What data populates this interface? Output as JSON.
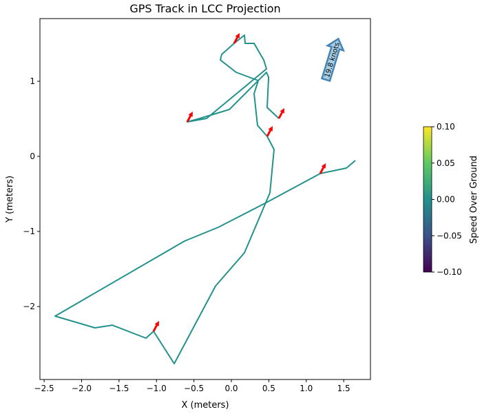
{
  "chart_data": {
    "type": "line",
    "title": "GPS Track in LCC Projection",
    "xlabel": "X (meters)",
    "ylabel": "Y (meters)",
    "xlim": [
      -2.556,
      1.857
    ],
    "ylim": [
      -2.972,
      1.835
    ],
    "xticks": [
      -2.5,
      -2.0,
      -1.5,
      -1.0,
      -0.5,
      0.0,
      0.5,
      1.0,
      1.5
    ],
    "xtick_labels": [
      "−2.5",
      "−2.0",
      "−1.5",
      "−1.0",
      "−0.5",
      "0.0",
      "0.5",
      "1.0",
      "1.5"
    ],
    "yticks": [
      1,
      0,
      -1,
      -2
    ],
    "ytick_labels": [
      "1",
      "0",
      "−1",
      "−2"
    ],
    "grid": false,
    "line_color": "#21918c",
    "track": {
      "x": [
        1.655,
        1.536,
        1.186,
        0.451,
        -0.175,
        -0.625,
        -2.354,
        -1.821,
        -1.591,
        -1.14,
        -1.039,
        -0.763,
        -0.211,
        0.175,
        0.515,
        0.57,
        0.478,
        0.349,
        0.303,
        0.359,
        0.064,
        -0.147,
        -0.129,
        0.037,
        0.175,
        0.184,
        0.303,
        0.432,
        0.469,
        -0.331,
        -0.589,
        -0.423,
        -0.028,
        0.469,
        0.497,
        0.478,
        0.634
      ],
      "y": [
        -0.055,
        -0.156,
        -0.229,
        -0.624,
        -0.945,
        -1.128,
        -2.128,
        -2.284,
        -2.248,
        -2.422,
        -2.33,
        -2.761,
        -1.725,
        -1.284,
        -0.486,
        0.092,
        0.266,
        0.413,
        0.835,
        1.009,
        1.119,
        1.284,
        1.358,
        1.505,
        1.615,
        1.505,
        1.505,
        1.284,
        1.165,
        0.505,
        0.459,
        0.505,
        0.624,
        1.119,
        1.055,
        0.651,
        0.505
      ]
    },
    "heading_arrows": {
      "color": "#ff0000",
      "x": [
        0.037,
        -0.589,
        0.634,
        0.478,
        1.186,
        -1.039
      ],
      "y": [
        1.505,
        0.459,
        0.505,
        0.266,
        -0.229,
        -2.33
      ],
      "heading_deg": 28
    },
    "annotation": {
      "text": "19.8 knots",
      "fill": "#a6cee3",
      "edge": "#4682b4"
    },
    "colorbar": {
      "label": "Speed Over Ground",
      "range": [
        -0.1,
        0.1
      ],
      "ticks": [
        0.1,
        0.05,
        0.0,
        -0.05,
        -0.1
      ],
      "tick_labels": [
        "0.10",
        "0.05",
        "0.00",
        "−0.05",
        "−0.10"
      ],
      "colors": [
        "#440154",
        "#3b528b",
        "#21918c",
        "#5ec962",
        "#fde725"
      ]
    }
  }
}
